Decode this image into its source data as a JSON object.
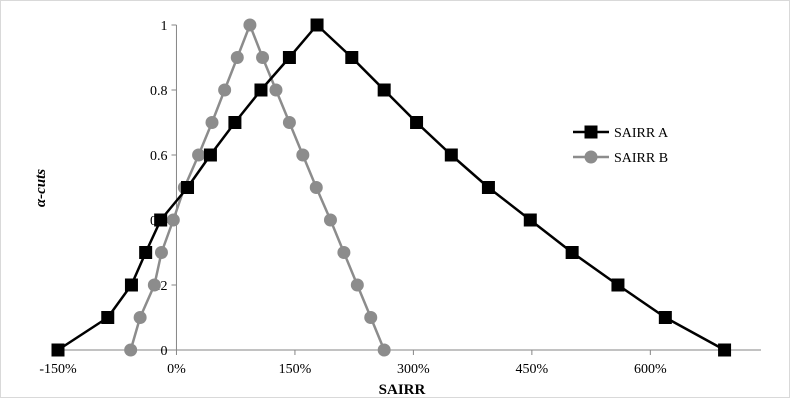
{
  "chart_data": {
    "type": "line",
    "title": "",
    "xlabel": "SAIRR",
    "ylabel": "α-cuts",
    "xlim": [
      -150,
      730
    ],
    "ylim": [
      0,
      1
    ],
    "x_ticks": [
      {
        "value": -150,
        "label": "-150%"
      },
      {
        "value": 0,
        "label": "0%"
      },
      {
        "value": 150,
        "label": "150%"
      },
      {
        "value": 300,
        "label": "300%"
      },
      {
        "value": 450,
        "label": "450%"
      },
      {
        "value": 600,
        "label": "600%"
      }
    ],
    "y_ticks": [
      {
        "value": 0,
        "label": "0"
      },
      {
        "value": 0.2,
        "label": "0.2"
      },
      {
        "value": 0.4,
        "label": "0.4"
      },
      {
        "value": 0.6,
        "label": "0.6"
      },
      {
        "value": 0.8,
        "label": "0.8"
      },
      {
        "value": 1,
        "label": "1"
      }
    ],
    "grid": false,
    "legend_position": "right",
    "series": [
      {
        "name": "SAIRR A",
        "color": "#000000",
        "marker": "square",
        "points": [
          [
            -150,
            0
          ],
          [
            -87,
            0.1
          ],
          [
            -57,
            0.2
          ],
          [
            -39,
            0.3
          ],
          [
            -20,
            0.4
          ],
          [
            14,
            0.5
          ],
          [
            43,
            0.6
          ],
          [
            74,
            0.7
          ],
          [
            107,
            0.8
          ],
          [
            143,
            0.9
          ],
          [
            178,
            1
          ],
          [
            222,
            0.9
          ],
          [
            263,
            0.8
          ],
          [
            304,
            0.7
          ],
          [
            348,
            0.6
          ],
          [
            395,
            0.5
          ],
          [
            448,
            0.4
          ],
          [
            501,
            0.3
          ],
          [
            559,
            0.2
          ],
          [
            619,
            0.1
          ],
          [
            694,
            0
          ]
        ]
      },
      {
        "name": "SAIRR B",
        "color": "#8c8c8c",
        "marker": "circle",
        "points": [
          [
            -58,
            0
          ],
          [
            -46,
            0.1
          ],
          [
            -28,
            0.2
          ],
          [
            -19,
            0.3
          ],
          [
            -4,
            0.4
          ],
          [
            10,
            0.5
          ],
          [
            28,
            0.6
          ],
          [
            45,
            0.7
          ],
          [
            61,
            0.8
          ],
          [
            77,
            0.9
          ],
          [
            93,
            1
          ],
          [
            109,
            0.9
          ],
          [
            126,
            0.8
          ],
          [
            143,
            0.7
          ],
          [
            160,
            0.6
          ],
          [
            177,
            0.5
          ],
          [
            195,
            0.4
          ],
          [
            212,
            0.3
          ],
          [
            229,
            0.2
          ],
          [
            246,
            0.1
          ],
          [
            263,
            0
          ]
        ]
      }
    ]
  }
}
